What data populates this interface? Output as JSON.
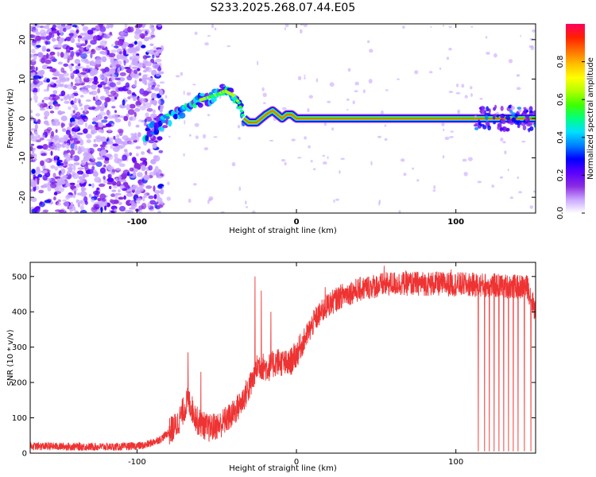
{
  "title": "S233.2025.268.07.44.E05",
  "chart_data": [
    {
      "type": "heatmap",
      "xlabel": "Height of straight line (km)",
      "ylabel": "Frequency (Hz)",
      "xlim": [
        -167,
        150
      ],
      "ylim": [
        -24,
        24
      ],
      "x_ticks": [
        -100,
        0,
        100
      ],
      "y_ticks": [
        -20,
        -10,
        0,
        10,
        20
      ],
      "colorbar": {
        "label": "Normalized spectral amplitude",
        "range": [
          0,
          1
        ],
        "ticks": [
          "0.0",
          "0.2",
          "0.4",
          "0.6",
          "0.8"
        ],
        "colors": [
          "#ffffff",
          "#c9a6ff",
          "#8a2be2",
          "#5a00ff",
          "#0000ff",
          "#0080ff",
          "#00e0ff",
          "#00ff80",
          "#40ff00",
          "#b0ff00",
          "#ffff00",
          "#ffc000",
          "#ff7000",
          "#ff2000",
          "#ff0060"
        ]
      },
      "ridge": [
        [
          -95,
          -4
        ],
        [
          -88,
          -2
        ],
        [
          -80,
          0
        ],
        [
          -72,
          2
        ],
        [
          -65,
          4
        ],
        [
          -58,
          5
        ],
        [
          -50,
          6
        ],
        [
          -45,
          7
        ],
        [
          -40,
          6
        ],
        [
          -36,
          4
        ],
        [
          -33,
          0
        ],
        [
          -30,
          -1
        ],
        [
          -25,
          -1
        ],
        [
          -22,
          0
        ],
        [
          -19,
          1
        ],
        [
          -15,
          2
        ],
        [
          -12,
          1
        ],
        [
          -9,
          0
        ],
        [
          -6,
          1
        ],
        [
          -3,
          1
        ],
        [
          0,
          0
        ],
        [
          150,
          0
        ]
      ]
    },
    {
      "type": "line",
      "xlabel": "Height of straight line (km)",
      "ylabel": "SNR (10 * v/v)",
      "xlim": [
        -167,
        150
      ],
      "ylim": [
        0,
        540
      ],
      "x_ticks": [
        -100,
        0,
        100
      ],
      "y_ticks": [
        0,
        100,
        200,
        300,
        400,
        500
      ],
      "series_color": "#ee3333",
      "envelope": [
        [
          -167,
          20
        ],
        [
          -130,
          18
        ],
        [
          -110,
          18
        ],
        [
          -95,
          22
        ],
        [
          -85,
          40
        ],
        [
          -75,
          80
        ],
        [
          -68,
          150
        ],
        [
          -62,
          90
        ],
        [
          -55,
          70
        ],
        [
          -48,
          80
        ],
        [
          -40,
          110
        ],
        [
          -35,
          140
        ],
        [
          -28,
          200
        ],
        [
          -24,
          250
        ],
        [
          -18,
          240
        ],
        [
          -12,
          260
        ],
        [
          -5,
          250
        ],
        [
          0,
          280
        ],
        [
          5,
          320
        ],
        [
          12,
          380
        ],
        [
          20,
          420
        ],
        [
          30,
          450
        ],
        [
          45,
          470
        ],
        [
          60,
          480
        ],
        [
          80,
          480
        ],
        [
          100,
          478
        ],
        [
          120,
          475
        ],
        [
          135,
          472
        ],
        [
          145,
          470
        ],
        [
          150,
          400
        ]
      ],
      "noise_amplitude": 25,
      "spikes": [
        [
          -68,
          285
        ],
        [
          -60,
          230
        ],
        [
          -26,
          500
        ],
        [
          -22,
          460
        ],
        [
          -16,
          400
        ],
        [
          18,
          470
        ],
        [
          55,
          530
        ],
        [
          97,
          520
        ]
      ],
      "dropouts": [
        114,
        118,
        121,
        124,
        127,
        130,
        133,
        136,
        139,
        143,
        147
      ]
    }
  ]
}
